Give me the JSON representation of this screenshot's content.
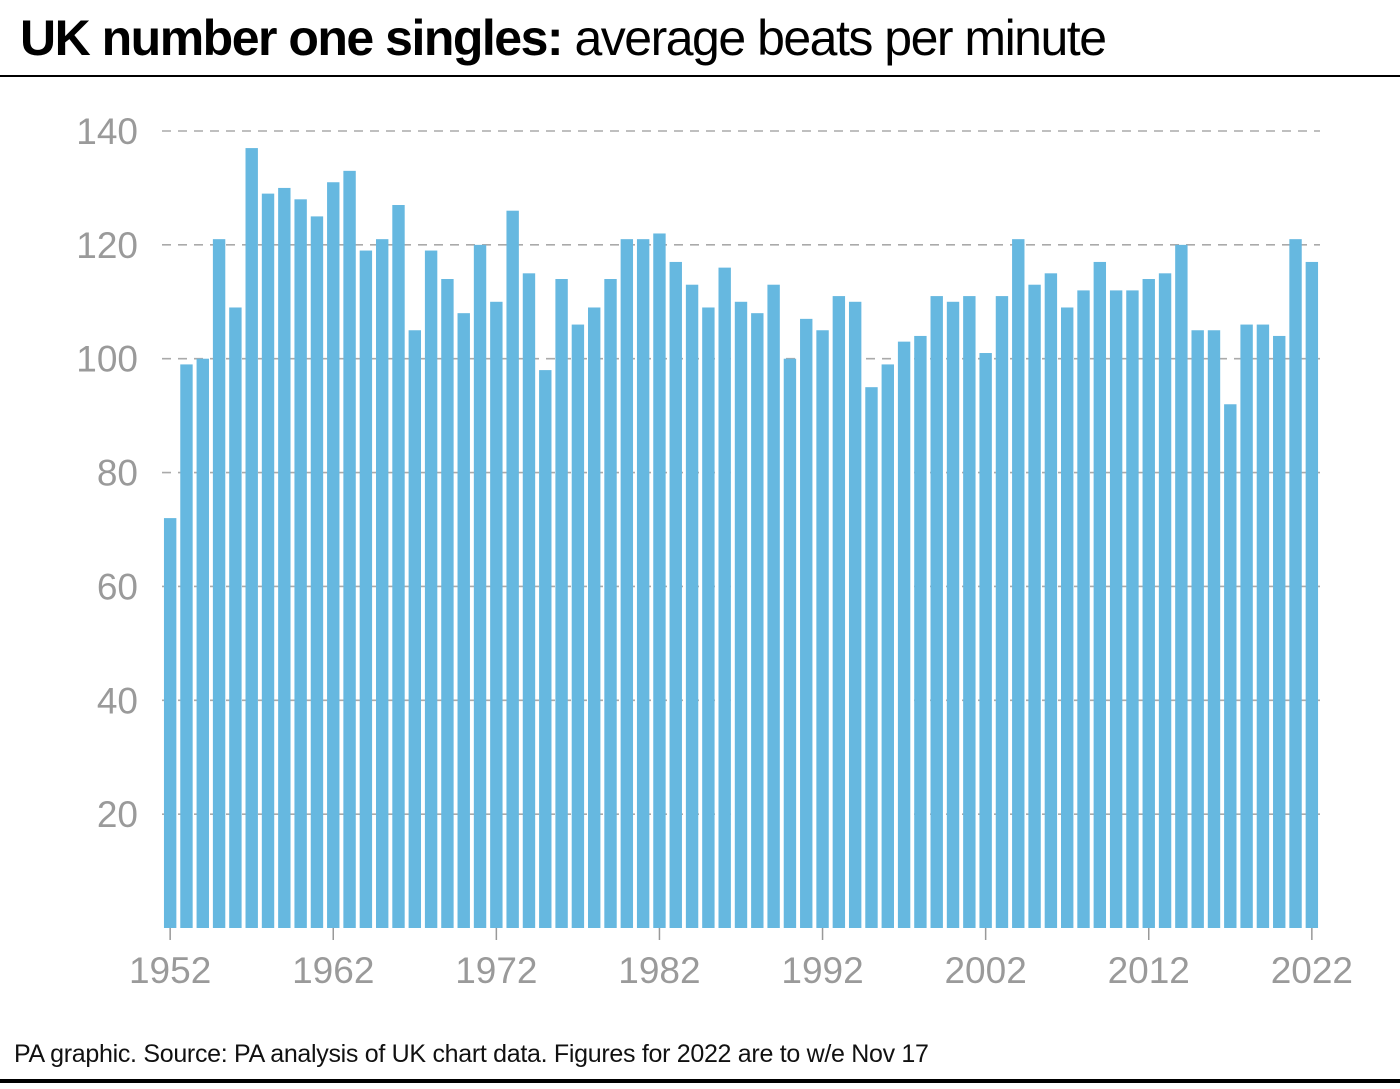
{
  "title_bold": "UK number one singles:",
  "title_light": "average beats per minute",
  "source": "PA graphic. Source: PA analysis of UK chart data. Figures for 2022 are to w/e Nov 17",
  "colors": {
    "bar": "#66b8e0",
    "grid": "#aaaaaa",
    "tick_text": "#9a9a9a"
  },
  "chart_data": {
    "type": "bar",
    "title": "UK number one singles: average beats per minute",
    "xlabel": "",
    "ylabel": "",
    "ylim": [
      0,
      140
    ],
    "y_ticks": [
      20,
      40,
      60,
      80,
      100,
      120,
      140
    ],
    "x_tick_labels": [
      "1952",
      "1962",
      "1972",
      "1982",
      "1992",
      "2002",
      "2012",
      "2022"
    ],
    "grid": "horizontal dashed",
    "categories": [
      "1952",
      "1953",
      "1954",
      "1955",
      "1956",
      "1957",
      "1958",
      "1959",
      "1960",
      "1961",
      "1962",
      "1963",
      "1964",
      "1965",
      "1966",
      "1967",
      "1968",
      "1969",
      "1970",
      "1971",
      "1972",
      "1973",
      "1974",
      "1975",
      "1976",
      "1977",
      "1978",
      "1979",
      "1980",
      "1981",
      "1982",
      "1983",
      "1984",
      "1985",
      "1986",
      "1987",
      "1988",
      "1989",
      "1990",
      "1991",
      "1992",
      "1993",
      "1994",
      "1995",
      "1996",
      "1997",
      "1998",
      "1999",
      "2000",
      "2001",
      "2002",
      "2003",
      "2004",
      "2005",
      "2006",
      "2007",
      "2008",
      "2009",
      "2010",
      "2011",
      "2012",
      "2013",
      "2014",
      "2015",
      "2016",
      "2017",
      "2018",
      "2019",
      "2020",
      "2021",
      "2022"
    ],
    "values": [
      72,
      99,
      100,
      121,
      109,
      137,
      129,
      130,
      128,
      125,
      131,
      133,
      119,
      121,
      127,
      105,
      119,
      114,
      108,
      120,
      110,
      126,
      115,
      98,
      114,
      106,
      109,
      114,
      121,
      121,
      122,
      117,
      113,
      109,
      116,
      110,
      108,
      113,
      100,
      107,
      105,
      111,
      110,
      95,
      99,
      103,
      104,
      111,
      110,
      111,
      101,
      111,
      121,
      113,
      115,
      109,
      112,
      117,
      112,
      112,
      114,
      115,
      120,
      105,
      105,
      92,
      106,
      106,
      104,
      121,
      117
    ]
  }
}
